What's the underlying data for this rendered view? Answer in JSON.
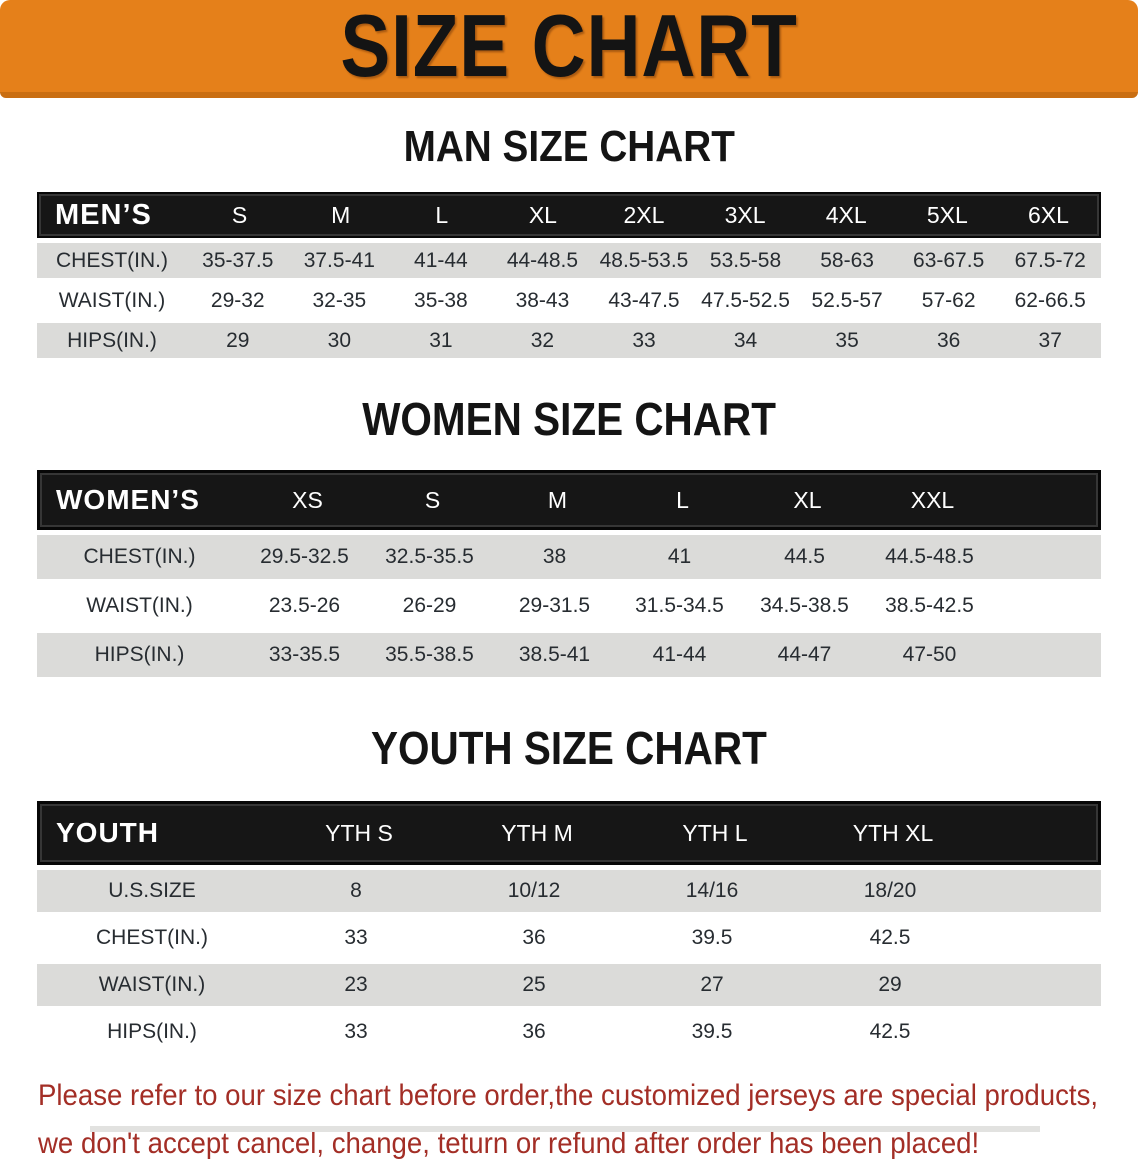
{
  "banner": {
    "title": "SIZE CHART"
  },
  "colors": {
    "banner_bg": "#E5801A",
    "banner_text": "#141414",
    "header_bar_bg": "#161616",
    "header_bar_text": "#FFFFFF",
    "row_alt_bg": "#DBDBD9",
    "row_bg": "#FFFFFF",
    "disclaimer_text": "#A32E26"
  },
  "chart_data": [
    {
      "type": "table",
      "id": "men",
      "title": "MAN SIZE CHART",
      "corner_label": "MEN’S",
      "size_columns": [
        "S",
        "M",
        "L",
        "XL",
        "2XL",
        "3XL",
        "4XL",
        "5XL",
        "6XL"
      ],
      "rows": [
        {
          "label": "CHEST(IN.)",
          "values": [
            "35-37.5",
            "37.5-41",
            "41-44",
            "44-48.5",
            "48.5-53.5",
            "53.5-58",
            "58-63",
            "63-67.5",
            "67.5-72"
          ]
        },
        {
          "label": "WAIST(IN.)",
          "values": [
            "29-32",
            "32-35",
            "35-38",
            "38-43",
            "43-47.5",
            "47.5-52.5",
            "52.5-57",
            "57-62",
            "62-66.5"
          ]
        },
        {
          "label": "HIPS(IN.)",
          "values": [
            "29",
            "30",
            "31",
            "32",
            "33",
            "34",
            "35",
            "36",
            "37"
          ]
        }
      ]
    },
    {
      "type": "table",
      "id": "women",
      "title": "WOMEN SIZE CHART",
      "corner_label": "WOMEN’S",
      "size_columns": [
        "XS",
        "S",
        "M",
        "L",
        "XL",
        "XXL"
      ],
      "rows": [
        {
          "label": "CHEST(IN.)",
          "values": [
            "29.5-32.5",
            "32.5-35.5",
            "38",
            "41",
            "44.5",
            "44.5-48.5"
          ]
        },
        {
          "label": "WAIST(IN.)",
          "values": [
            "23.5-26",
            "26-29",
            "29-31.5",
            "31.5-34.5",
            "34.5-38.5",
            "38.5-42.5"
          ]
        },
        {
          "label": "HIPS(IN.)",
          "values": [
            "33-35.5",
            "35.5-38.5",
            "38.5-41",
            "41-44",
            "44-47",
            "47-50"
          ]
        }
      ]
    },
    {
      "type": "table",
      "id": "youth",
      "title": "YOUTH SIZE CHART",
      "corner_label": "YOUTH",
      "size_columns": [
        "YTH S",
        "YTH M",
        "YTH L",
        "YTH XL"
      ],
      "rows": [
        {
          "label": "U.S.SIZE",
          "values": [
            "8",
            "10/12",
            "14/16",
            "18/20"
          ]
        },
        {
          "label": "CHEST(IN.)",
          "values": [
            "33",
            "36",
            "39.5",
            "42.5"
          ]
        },
        {
          "label": "WAIST(IN.)",
          "values": [
            "23",
            "25",
            "27",
            "29"
          ]
        },
        {
          "label": "HIPS(IN.)",
          "values": [
            "33",
            "36",
            "39.5",
            "42.5"
          ]
        }
      ]
    }
  ],
  "disclaimer": {
    "line1": "Please refer to our size chart before order,the customized jerseys are special products,",
    "line2": "we don't accept cancel, change, teturn or refund after order has been placed!"
  }
}
